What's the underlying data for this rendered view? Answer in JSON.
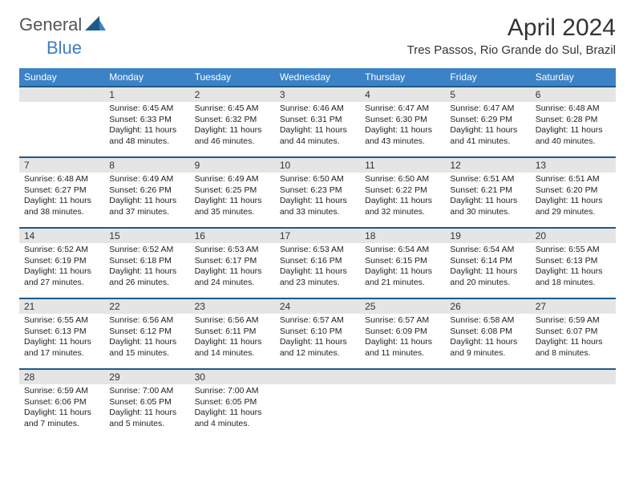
{
  "logo": {
    "general": "General",
    "blue": "Blue"
  },
  "title": "April 2024",
  "location": "Tres Passos, Rio Grande do Sul, Brazil",
  "dow": [
    "Sunday",
    "Monday",
    "Tuesday",
    "Wednesday",
    "Thursday",
    "Friday",
    "Saturday"
  ],
  "colors": {
    "header_bg": "#3b82c7",
    "header_rule": "#1f5a8a",
    "daynum_bg": "#e5e5e5",
    "text": "#222222"
  },
  "weeks": [
    [
      {
        "blank": true
      },
      {
        "n": "1",
        "sr": "6:45 AM",
        "ss": "6:33 PM",
        "dl1": "Daylight: 11 hours",
        "dl2": "and 48 minutes."
      },
      {
        "n": "2",
        "sr": "6:45 AM",
        "ss": "6:32 PM",
        "dl1": "Daylight: 11 hours",
        "dl2": "and 46 minutes."
      },
      {
        "n": "3",
        "sr": "6:46 AM",
        "ss": "6:31 PM",
        "dl1": "Daylight: 11 hours",
        "dl2": "and 44 minutes."
      },
      {
        "n": "4",
        "sr": "6:47 AM",
        "ss": "6:30 PM",
        "dl1": "Daylight: 11 hours",
        "dl2": "and 43 minutes."
      },
      {
        "n": "5",
        "sr": "6:47 AM",
        "ss": "6:29 PM",
        "dl1": "Daylight: 11 hours",
        "dl2": "and 41 minutes."
      },
      {
        "n": "6",
        "sr": "6:48 AM",
        "ss": "6:28 PM",
        "dl1": "Daylight: 11 hours",
        "dl2": "and 40 minutes."
      }
    ],
    [
      {
        "n": "7",
        "sr": "6:48 AM",
        "ss": "6:27 PM",
        "dl1": "Daylight: 11 hours",
        "dl2": "and 38 minutes."
      },
      {
        "n": "8",
        "sr": "6:49 AM",
        "ss": "6:26 PM",
        "dl1": "Daylight: 11 hours",
        "dl2": "and 37 minutes."
      },
      {
        "n": "9",
        "sr": "6:49 AM",
        "ss": "6:25 PM",
        "dl1": "Daylight: 11 hours",
        "dl2": "and 35 minutes."
      },
      {
        "n": "10",
        "sr": "6:50 AM",
        "ss": "6:23 PM",
        "dl1": "Daylight: 11 hours",
        "dl2": "and 33 minutes."
      },
      {
        "n": "11",
        "sr": "6:50 AM",
        "ss": "6:22 PM",
        "dl1": "Daylight: 11 hours",
        "dl2": "and 32 minutes."
      },
      {
        "n": "12",
        "sr": "6:51 AM",
        "ss": "6:21 PM",
        "dl1": "Daylight: 11 hours",
        "dl2": "and 30 minutes."
      },
      {
        "n": "13",
        "sr": "6:51 AM",
        "ss": "6:20 PM",
        "dl1": "Daylight: 11 hours",
        "dl2": "and 29 minutes."
      }
    ],
    [
      {
        "n": "14",
        "sr": "6:52 AM",
        "ss": "6:19 PM",
        "dl1": "Daylight: 11 hours",
        "dl2": "and 27 minutes."
      },
      {
        "n": "15",
        "sr": "6:52 AM",
        "ss": "6:18 PM",
        "dl1": "Daylight: 11 hours",
        "dl2": "and 26 minutes."
      },
      {
        "n": "16",
        "sr": "6:53 AM",
        "ss": "6:17 PM",
        "dl1": "Daylight: 11 hours",
        "dl2": "and 24 minutes."
      },
      {
        "n": "17",
        "sr": "6:53 AM",
        "ss": "6:16 PM",
        "dl1": "Daylight: 11 hours",
        "dl2": "and 23 minutes."
      },
      {
        "n": "18",
        "sr": "6:54 AM",
        "ss": "6:15 PM",
        "dl1": "Daylight: 11 hours",
        "dl2": "and 21 minutes."
      },
      {
        "n": "19",
        "sr": "6:54 AM",
        "ss": "6:14 PM",
        "dl1": "Daylight: 11 hours",
        "dl2": "and 20 minutes."
      },
      {
        "n": "20",
        "sr": "6:55 AM",
        "ss": "6:13 PM",
        "dl1": "Daylight: 11 hours",
        "dl2": "and 18 minutes."
      }
    ],
    [
      {
        "n": "21",
        "sr": "6:55 AM",
        "ss": "6:13 PM",
        "dl1": "Daylight: 11 hours",
        "dl2": "and 17 minutes."
      },
      {
        "n": "22",
        "sr": "6:56 AM",
        "ss": "6:12 PM",
        "dl1": "Daylight: 11 hours",
        "dl2": "and 15 minutes."
      },
      {
        "n": "23",
        "sr": "6:56 AM",
        "ss": "6:11 PM",
        "dl1": "Daylight: 11 hours",
        "dl2": "and 14 minutes."
      },
      {
        "n": "24",
        "sr": "6:57 AM",
        "ss": "6:10 PM",
        "dl1": "Daylight: 11 hours",
        "dl2": "and 12 minutes."
      },
      {
        "n": "25",
        "sr": "6:57 AM",
        "ss": "6:09 PM",
        "dl1": "Daylight: 11 hours",
        "dl2": "and 11 minutes."
      },
      {
        "n": "26",
        "sr": "6:58 AM",
        "ss": "6:08 PM",
        "dl1": "Daylight: 11 hours",
        "dl2": "and 9 minutes."
      },
      {
        "n": "27",
        "sr": "6:59 AM",
        "ss": "6:07 PM",
        "dl1": "Daylight: 11 hours",
        "dl2": "and 8 minutes."
      }
    ],
    [
      {
        "n": "28",
        "sr": "6:59 AM",
        "ss": "6:06 PM",
        "dl1": "Daylight: 11 hours",
        "dl2": "and 7 minutes."
      },
      {
        "n": "29",
        "sr": "7:00 AM",
        "ss": "6:05 PM",
        "dl1": "Daylight: 11 hours",
        "dl2": "and 5 minutes."
      },
      {
        "n": "30",
        "sr": "7:00 AM",
        "ss": "6:05 PM",
        "dl1": "Daylight: 11 hours",
        "dl2": "and 4 minutes."
      },
      {
        "blank": true
      },
      {
        "blank": true
      },
      {
        "blank": true
      },
      {
        "blank": true
      }
    ]
  ],
  "labels": {
    "sunrise": "Sunrise: ",
    "sunset": "Sunset: "
  }
}
